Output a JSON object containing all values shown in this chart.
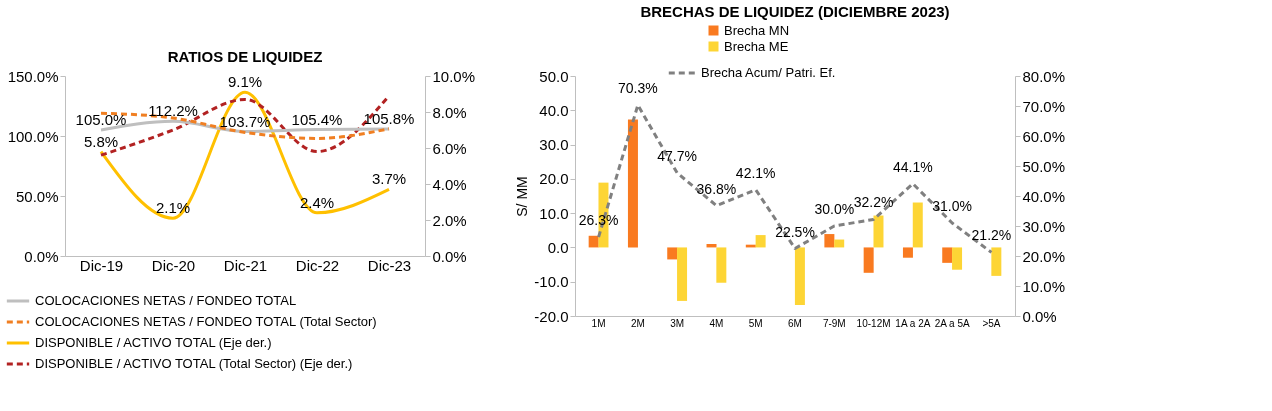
{
  "chart_data": [
    {
      "type": "line",
      "title": "RATIOS DE LIQUIDEZ",
      "categories": [
        "Dic-19",
        "Dic-20",
        "Dic-21",
        "Dic-22",
        "Dic-23"
      ],
      "series": [
        {
          "name": "COLOCACIONES NETAS / FONDEO TOTAL",
          "color": "#bfbfbf",
          "line_style": "solid",
          "values": [
            105.0,
            112.2,
            103.7,
            105.4,
            105.8
          ],
          "value_labels": [
            "105.0%",
            "112.2%",
            "103.7%",
            "105.4%",
            "105.8%"
          ]
        },
        {
          "name": "COLOCACIONES NETAS / FONDEO TOTAL (Total Sector)",
          "color": "#f07f22",
          "line_style": "dashed",
          "values": [
            119,
            115,
            103,
            98,
            106
          ]
        },
        {
          "name": "DISPONIBLE / ACTIVO TOTAL (Eje der.)",
          "color": "#ffc000",
          "line_style": "solid",
          "axis": "y2",
          "values": [
            5.8,
            2.1,
            9.1,
            2.4,
            3.7
          ],
          "value_labels": [
            "5.8%",
            "2.1%",
            "9.1%",
            "2.4%",
            "3.7%"
          ]
        },
        {
          "name": "DISPONIBLE / ACTIVO TOTAL (Total Sector) (Eje der.)",
          "color": "#b22222",
          "line_style": "dashed",
          "axis": "y2",
          "values": [
            5.6,
            7.0,
            8.7,
            5.8,
            8.9
          ]
        }
      ],
      "ylim": [
        0,
        150
      ],
      "yticks": [
        {
          "value": 0,
          "label": "0.0%"
        },
        {
          "value": 50,
          "label": "50.0%"
        },
        {
          "value": 100,
          "label": "100.0%"
        },
        {
          "value": 150,
          "label": "150.0%"
        }
      ],
      "y2lim": [
        0,
        10
      ],
      "y2ticks": [
        {
          "value": 0,
          "label": "0.0%"
        },
        {
          "value": 2,
          "label": "2.0%"
        },
        {
          "value": 4,
          "label": "4.0%"
        },
        {
          "value": 6,
          "label": "6.0%"
        },
        {
          "value": 8,
          "label": "8.0%"
        },
        {
          "value": 10,
          "label": "10.0%"
        }
      ],
      "legend": "bottom"
    },
    {
      "type": "bar",
      "title": "BRECHAS DE LIQUIDEZ (DICIEMBRE 2023)",
      "ylabel": "S/ MM",
      "categories": [
        "1M",
        "2M",
        "3M",
        "4M",
        "5M",
        "6M",
        "7-9M",
        "10-12M",
        "1A a 2A",
        "2A a 5A",
        ">5A"
      ],
      "series": [
        {
          "name": "Brecha MN",
          "color": "#f97a20",
          "values": [
            3.4,
            37.3,
            -3.5,
            1.0,
            0.8,
            null,
            3.9,
            -7.4,
            -3.0,
            -4.5,
            0.0
          ]
        },
        {
          "name": "Brecha ME",
          "color": "#fdd535",
          "values": [
            18.9,
            0.0,
            -15.6,
            -10.3,
            3.6,
            -16.8,
            2.3,
            9.3,
            13.1,
            -6.5,
            -8.3
          ]
        },
        {
          "name": "Brecha Acum/ Patri. Ef.",
          "color": "#808080",
          "type": "line",
          "line_style": "dashed",
          "axis": "y2",
          "values": [
            26.3,
            70.3,
            47.7,
            36.8,
            42.1,
            22.5,
            30.0,
            32.2,
            44.1,
            31.0,
            21.2
          ],
          "value_labels": [
            "26.3%",
            "70.3%",
            "47.7%",
            "36.8%",
            "42.1%",
            "22.5%",
            "30.0%",
            "32.2%",
            "44.1%",
            "31.0%",
            "21.2%"
          ]
        }
      ],
      "ylim": [
        -20,
        50
      ],
      "yticks": [
        {
          "value": -20,
          "label": "-20.0"
        },
        {
          "value": -10,
          "label": "-10.0"
        },
        {
          "value": 0,
          "label": "0.0"
        },
        {
          "value": 10,
          "label": "10.0"
        },
        {
          "value": 20,
          "label": "20.0"
        },
        {
          "value": 30,
          "label": "30.0"
        },
        {
          "value": 40,
          "label": "40.0"
        },
        {
          "value": 50,
          "label": "50.0"
        }
      ],
      "y2lim": [
        0,
        80
      ],
      "y2ticks": [
        {
          "value": 0,
          "label": "0.0%"
        },
        {
          "value": 10,
          "label": "10.0%"
        },
        {
          "value": 20,
          "label": "20.0%"
        },
        {
          "value": 30,
          "label": "30.0%"
        },
        {
          "value": 40,
          "label": "40.0%"
        },
        {
          "value": 50,
          "label": "50.0%"
        },
        {
          "value": 60,
          "label": "60.0%"
        },
        {
          "value": 70,
          "label": "70.0%"
        },
        {
          "value": 80,
          "label": "80.0%"
        }
      ],
      "legend": "top"
    }
  ]
}
